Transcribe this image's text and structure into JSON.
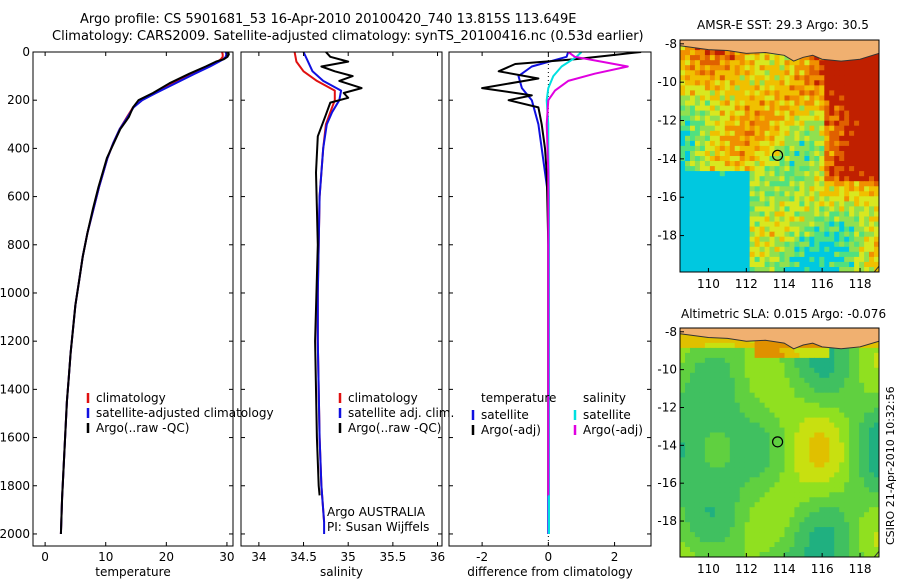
{
  "figure": {
    "title_line1": "Argo profile: CS 5901681_53 16-Apr-2010 20100420_740 13.815S 113.649E",
    "title_line2": "Climatology: CARS2009. Satellite-adjusted climatology: synTS_20100416.nc (0.53d earlier)",
    "timestamp": "CSIRO 21-Apr-2010 10:32:56"
  },
  "colors": {
    "climatology": "#e01010",
    "satellite": "#1010e0",
    "argo": "#000000",
    "sal_satellite": "#00e0e0",
    "sal_argo": "#e000e0",
    "land": "#f0b070",
    "coast": "#333333"
  },
  "chart_data": [
    {
      "type": "line",
      "id": "temperature_profile",
      "xlabel": "temperature",
      "ylabel": "",
      "xlim": [
        -2,
        31
      ],
      "ylim": [
        2050,
        0
      ],
      "xticks": [
        0,
        10,
        20,
        30
      ],
      "yticks": [
        0,
        200,
        400,
        600,
        800,
        1000,
        1200,
        1400,
        1600,
        1800,
        2000
      ],
      "legend": [
        "climatology",
        "satellite-adjusted climatology",
        "Argo(..raw -QC)"
      ],
      "legend_position": "lower-right",
      "series": [
        {
          "name": "climatology",
          "color_key": "climatology",
          "x": [
            29.2,
            29.3,
            29.3,
            29.0,
            28.5,
            27.0,
            24.5,
            21.0,
            18.0,
            16.0,
            14.5,
            13.5,
            12.3,
            11.2,
            10.3,
            9.6,
            8.9,
            8.0,
            7.0,
            6.2,
            5.6,
            5.0,
            4.6,
            4.2,
            3.9,
            3.6,
            3.4,
            3.2,
            3.0,
            2.8,
            2.6
          ],
          "y": [
            0,
            10,
            20,
            30,
            40,
            60,
            90,
            130,
            170,
            200,
            230,
            270,
            320,
            380,
            440,
            500,
            560,
            650,
            750,
            850,
            950,
            1050,
            1150,
            1250,
            1350,
            1450,
            1550,
            1650,
            1750,
            1850,
            2000
          ]
        },
        {
          "name": "satellite-adjusted climatology",
          "color_key": "satellite",
          "x": [
            29.8,
            29.9,
            29.8,
            29.4,
            28.7,
            27.2,
            24.7,
            21.5,
            18.3,
            16.0,
            14.6,
            13.6,
            12.3,
            11.2,
            10.3,
            9.6,
            8.9,
            8.0,
            7.0,
            6.2,
            5.6,
            5.0,
            4.6,
            4.2,
            3.9,
            3.6,
            3.4,
            3.2,
            3.0,
            2.8,
            2.6
          ],
          "y": [
            0,
            10,
            20,
            30,
            40,
            60,
            90,
            130,
            170,
            200,
            230,
            270,
            320,
            380,
            440,
            500,
            560,
            650,
            750,
            850,
            950,
            1050,
            1150,
            1250,
            1350,
            1450,
            1550,
            1650,
            1750,
            1850,
            2000
          ]
        },
        {
          "name": "Argo(..raw -QC)",
          "color_key": "argo",
          "x": [
            30.2,
            30.3,
            30.1,
            29.5,
            28.2,
            26.5,
            23.8,
            20.5,
            17.8,
            15.4,
            14.5,
            13.8,
            12.4,
            11.3,
            10.2,
            9.5,
            8.8,
            7.9,
            7.0,
            6.2,
            5.6,
            5.0,
            4.6,
            4.2,
            3.9,
            3.6,
            3.4,
            3.2,
            3.0,
            2.8,
            2.6
          ],
          "y": [
            0,
            10,
            20,
            30,
            40,
            60,
            90,
            130,
            170,
            200,
            230,
            270,
            320,
            380,
            440,
            500,
            560,
            650,
            750,
            850,
            950,
            1050,
            1150,
            1250,
            1350,
            1450,
            1550,
            1650,
            1750,
            1850,
            2000
          ]
        }
      ]
    },
    {
      "type": "line",
      "id": "salinity_profile",
      "xlabel": "salinity",
      "xlim": [
        33.8,
        36.05
      ],
      "ylim": [
        2050,
        0
      ],
      "xticks": [
        34,
        34.5,
        35,
        35.5,
        36
      ],
      "legend": [
        "climatology",
        "satellite adj. clim.",
        "Argo(..raw -QC)"
      ],
      "legend_position": "lower-right",
      "annotation": [
        "Argo AUSTRALIA",
        "PI: Susan Wijffels"
      ],
      "series": [
        {
          "name": "climatology",
          "color_key": "climatology",
          "x": [
            34.4,
            34.42,
            34.5,
            34.65,
            34.85,
            34.85,
            34.8,
            34.75,
            34.72,
            34.7,
            34.68,
            34.67,
            34.66,
            34.66,
            34.67,
            34.68,
            34.7,
            34.72,
            34.73
          ],
          "y": [
            0,
            40,
            80,
            120,
            160,
            200,
            250,
            300,
            400,
            500,
            600,
            800,
            1000,
            1200,
            1400,
            1600,
            1800,
            1900,
            1950
          ]
        },
        {
          "name": "satellite adj. clim.",
          "color_key": "satellite",
          "x": [
            34.5,
            34.55,
            34.6,
            34.72,
            34.92,
            34.9,
            34.82,
            34.76,
            34.72,
            34.7,
            34.68,
            34.67,
            34.66,
            34.66,
            34.67,
            34.68,
            34.7,
            34.72,
            34.73,
            34.73
          ],
          "y": [
            0,
            40,
            80,
            120,
            160,
            200,
            250,
            300,
            400,
            500,
            600,
            800,
            1000,
            1200,
            1400,
            1600,
            1800,
            1900,
            1950,
            2000
          ]
        },
        {
          "name": "Argo(..raw -QC)",
          "color_key": "argo",
          "x": [
            34.75,
            34.8,
            35.0,
            34.7,
            34.85,
            35.05,
            34.9,
            35.15,
            34.95,
            35.0,
            34.8,
            34.75,
            34.66,
            34.64,
            34.66,
            34.63,
            34.65,
            34.67,
            34.68
          ],
          "y": [
            0,
            20,
            40,
            60,
            80,
            100,
            120,
            150,
            170,
            190,
            210,
            260,
            350,
            500,
            800,
            1200,
            1600,
            1800,
            1840
          ]
        }
      ]
    },
    {
      "type": "line",
      "id": "difference_profile",
      "xlabel": "difference from climatology",
      "xlim": [
        -3,
        3.1
      ],
      "ylim": [
        2050,
        0
      ],
      "xticks": [
        -2,
        0,
        2
      ],
      "legend_temperature": [
        "temperature",
        "satellite",
        "Argo(-adj)"
      ],
      "legend_salinity": [
        "salinity",
        "satellite",
        "Argo(-adj)"
      ],
      "legend_position": "lower-center",
      "series": [
        {
          "name": "temperature satellite",
          "color_key": "satellite",
          "x": [
            0.6,
            0.55,
            -0.5,
            -0.9,
            -0.8,
            -0.5,
            -0.3,
            -0.2,
            -0.1,
            0.0,
            0.0,
            0.0,
            0.0,
            0.0,
            0.0
          ],
          "y": [
            0,
            20,
            60,
            100,
            150,
            200,
            300,
            400,
            500,
            600,
            800,
            1200,
            1600,
            1800,
            2000
          ]
        },
        {
          "name": "temperature Argo(-adj)",
          "color_key": "argo",
          "x": [
            2.8,
            1.8,
            0.8,
            -1.0,
            -1.5,
            -0.3,
            -2.0,
            -0.5,
            -1.2,
            -0.3,
            -0.2,
            -0.1,
            -0.05,
            0.0,
            0.0,
            0.0,
            0.0
          ],
          "y": [
            0,
            15,
            30,
            50,
            80,
            110,
            150,
            180,
            200,
            230,
            300,
            400,
            500,
            800,
            1200,
            1600,
            1840
          ]
        },
        {
          "name": "salinity satellite",
          "color_key": "sal_satellite",
          "x": [
            1.0,
            0.85,
            0.4,
            0.15,
            0.0,
            -0.05,
            0.0,
            0.0,
            0.02,
            0.02,
            0.02,
            0.02
          ],
          "y": [
            0,
            20,
            60,
            100,
            150,
            200,
            300,
            400,
            600,
            1200,
            1800,
            2000
          ]
        },
        {
          "name": "salinity Argo(-adj)",
          "color_key": "sal_argo",
          "x": [
            0.6,
            0.8,
            1.6,
            2.4,
            1.4,
            0.6,
            0.2,
            0.0,
            -0.05,
            0.0,
            0.0,
            0.0
          ],
          "y": [
            0,
            20,
            40,
            60,
            90,
            120,
            160,
            200,
            300,
            500,
            1000,
            1840
          ]
        }
      ]
    },
    {
      "type": "heatmap",
      "id": "sst_map",
      "title": "AMSR-E SST: 29.3 Argo: 30.5",
      "xlim": [
        108.5,
        119.0
      ],
      "ylim": [
        -19.9,
        -7.8
      ],
      "xticks": [
        110,
        112,
        114,
        116,
        118
      ],
      "yticks": [
        -8,
        -10,
        -12,
        -14,
        -16,
        -18
      ],
      "marker": {
        "lon": 113.649,
        "lat": -13.815
      },
      "palette": [
        "#00c8e0",
        "#50e080",
        "#90e050",
        "#d8e820",
        "#f0c000",
        "#f09000",
        "#e06000",
        "#c02000"
      ]
    },
    {
      "type": "heatmap",
      "id": "sla_map",
      "title": "Altimetric SLA: 0.015 Argo: -0.076",
      "xlim": [
        108.5,
        119.0
      ],
      "ylim": [
        -19.9,
        -7.8
      ],
      "xticks": [
        110,
        112,
        114,
        116,
        118
      ],
      "yticks": [
        -8,
        -10,
        -12,
        -14,
        -16,
        -18
      ],
      "marker": {
        "lon": 113.649,
        "lat": -13.815
      },
      "palette": [
        "#20b080",
        "#40c060",
        "#60d040",
        "#90e020",
        "#c8e010",
        "#e0c000",
        "#e09000"
      ]
    }
  ]
}
